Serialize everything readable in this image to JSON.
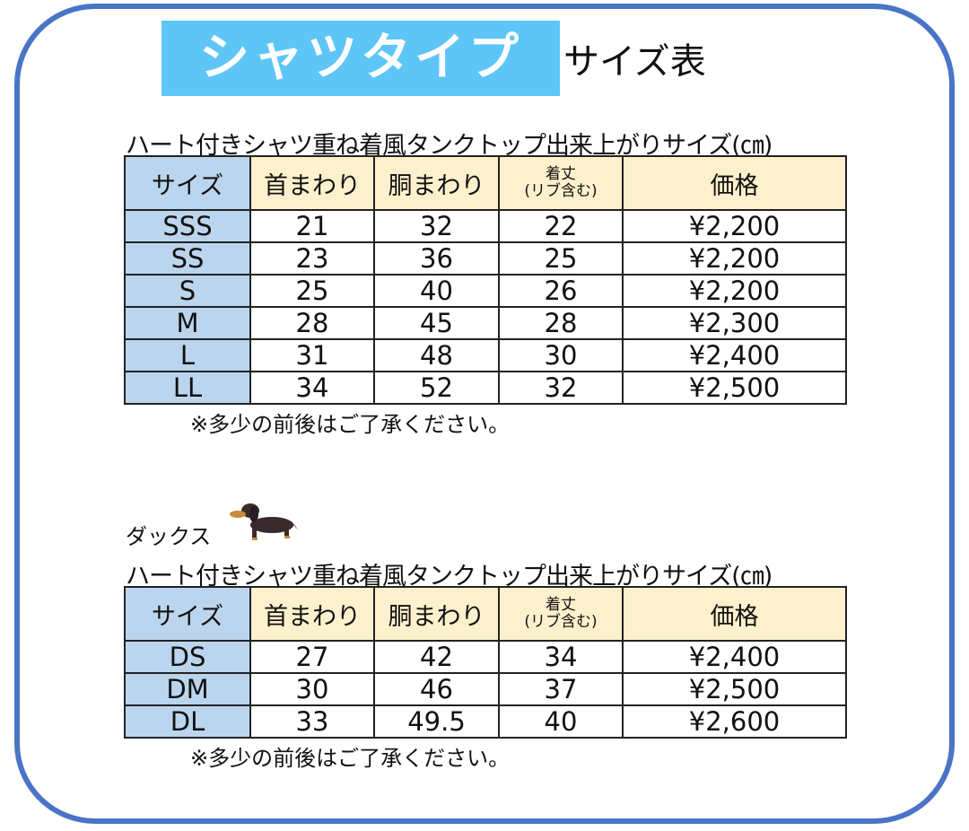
{
  "title": {
    "highlight": "シャツタイプ",
    "suffix": "サイズ表"
  },
  "colors": {
    "frame": "#4a74c6",
    "title_band": "#5ec6f7",
    "size_column": "#bcd5ee",
    "header": "#fdf0cc"
  },
  "headers": {
    "size": "サイズ",
    "neck": "首まわり",
    "chest": "胴まわり",
    "length_line1": "着丈",
    "length_line2": "(リブ含む)",
    "price": "価格"
  },
  "table1": {
    "caption": "ハート付きシャツ重ね着風タンクトップ出来上がりサイズ(㎝)",
    "rows": [
      [
        "SSS",
        "21",
        "32",
        "22",
        "¥2,200"
      ],
      [
        "SS",
        "23",
        "36",
        "25",
        "¥2,200"
      ],
      [
        "S",
        "25",
        "40",
        "26",
        "¥2,200"
      ],
      [
        "M",
        "28",
        "45",
        "28",
        "¥2,300"
      ],
      [
        "L",
        "31",
        "48",
        "30",
        "¥2,400"
      ],
      [
        "LL",
        "34",
        "52",
        "32",
        "¥2,500"
      ]
    ],
    "note": "※多少の前後はご了承ください。"
  },
  "table2": {
    "label": "ダックス",
    "icon": "dachshund-icon",
    "caption": "ハート付きシャツ重ね着風タンクトップ出来上がりサイズ(㎝)",
    "rows": [
      [
        "DS",
        "27",
        "42",
        "34",
        "¥2,400"
      ],
      [
        "DM",
        "30",
        "46",
        "37",
        "¥2,500"
      ],
      [
        "DL",
        "33",
        "49.5",
        "40",
        "¥2,600"
      ]
    ],
    "note": "※多少の前後はご了承ください。"
  }
}
